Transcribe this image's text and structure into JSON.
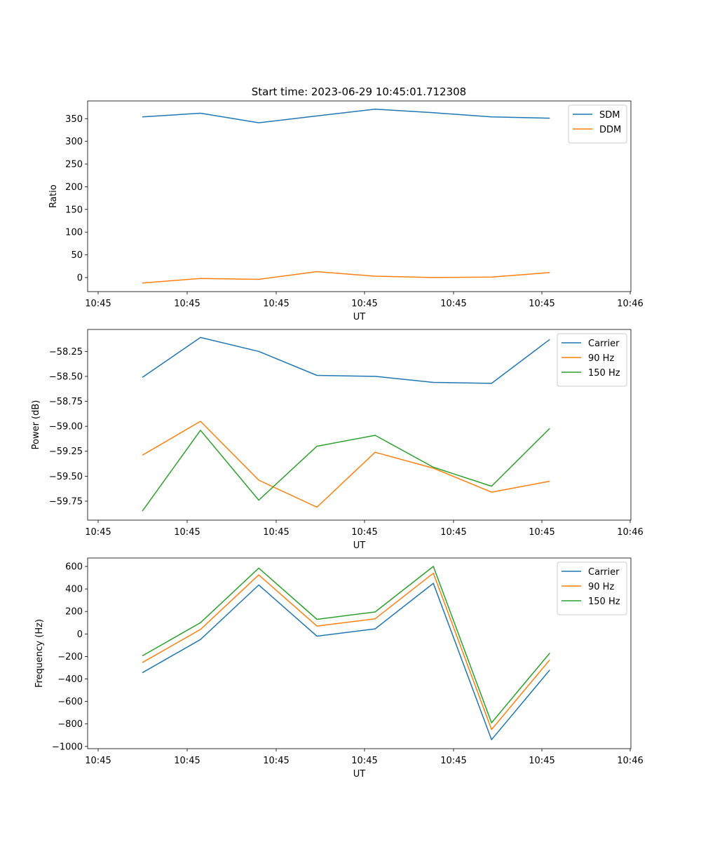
{
  "figure": {
    "title": "Start time: 2023-06-29 10:45:01.712308"
  },
  "chart_data": [
    {
      "type": "line",
      "xlabel": "UT",
      "ylabel": "Ratio",
      "x_tick_labels": [
        "10:45",
        "10:45",
        "10:45",
        "10:45",
        "10:45",
        "10:45",
        "10:46"
      ],
      "x": [
        0.25,
        0.58,
        0.91,
        1.24,
        1.57,
        1.9,
        2.23,
        2.56
      ],
      "xlim": [
        -0.06,
        3.02
      ],
      "yticks": [
        0,
        50,
        100,
        150,
        200,
        250,
        300,
        350
      ],
      "ylim": [
        -31,
        389
      ],
      "grid": false,
      "legend": "top-right",
      "series": [
        {
          "name": "SDM",
          "color": "#1f77b4",
          "values": [
            354,
            362,
            341,
            356,
            371,
            363,
            354,
            351
          ]
        },
        {
          "name": "DDM",
          "color": "#ff7f0e",
          "values": [
            -12,
            -2,
            -4,
            13,
            3,
            0,
            1,
            11
          ]
        }
      ]
    },
    {
      "type": "line",
      "xlabel": "UT",
      "ylabel": "Power (dB)",
      "x_tick_labels": [
        "10:45",
        "10:45",
        "10:45",
        "10:45",
        "10:45",
        "10:45",
        "10:46"
      ],
      "x": [
        0.25,
        0.58,
        0.91,
        1.24,
        1.57,
        1.9,
        2.23,
        2.56
      ],
      "xlim": [
        -0.06,
        3.02
      ],
      "yticks": [
        -59.75,
        -59.5,
        -59.25,
        -59.0,
        -58.75,
        -58.5,
        -58.25
      ],
      "ytick_labels": [
        "−59.75",
        "−59.50",
        "−59.25",
        "−59.00",
        "−58.75",
        "−58.50",
        "−58.25"
      ],
      "ylim": [
        -59.94,
        -58.03
      ],
      "grid": false,
      "legend": "top-right",
      "series": [
        {
          "name": "Carrier",
          "color": "#1f77b4",
          "values": [
            -58.51,
            -58.11,
            -58.25,
            -58.49,
            -58.5,
            -58.56,
            -58.57,
            -58.13
          ]
        },
        {
          "name": "90 Hz",
          "color": "#ff7f0e",
          "values": [
            -59.29,
            -58.95,
            -59.54,
            -59.81,
            -59.26,
            -59.42,
            -59.66,
            -59.55
          ]
        },
        {
          "name": "150 Hz",
          "color": "#2ca02c",
          "values": [
            -59.85,
            -59.04,
            -59.74,
            -59.2,
            -59.09,
            -59.41,
            -59.6,
            -59.02
          ]
        }
      ]
    },
    {
      "type": "line",
      "xlabel": "UT",
      "ylabel": "Frequency (Hz)",
      "x_tick_labels": [
        "10:45",
        "10:45",
        "10:45",
        "10:45",
        "10:45",
        "10:45",
        "10:46"
      ],
      "x": [
        0.25,
        0.58,
        0.91,
        1.24,
        1.57,
        1.9,
        2.23,
        2.56
      ],
      "xlim": [
        -0.06,
        3.02
      ],
      "yticks": [
        -1000,
        -800,
        -600,
        -400,
        -200,
        0,
        200,
        400,
        600
      ],
      "ytick_labels": [
        "−1000",
        "−800",
        "−600",
        "−400",
        "−200",
        "0",
        "200",
        "400",
        "600"
      ],
      "ylim": [
        -1020,
        675
      ],
      "grid": false,
      "legend": "top-right",
      "series": [
        {
          "name": "Carrier",
          "color": "#1f77b4",
          "values": [
            -345,
            -50,
            435,
            -20,
            45,
            450,
            -940,
            -320
          ]
        },
        {
          "name": "90 Hz",
          "color": "#ff7f0e",
          "values": [
            -255,
            40,
            525,
            70,
            135,
            540,
            -850,
            -230
          ]
        },
        {
          "name": "150 Hz",
          "color": "#2ca02c",
          "values": [
            -195,
            100,
            585,
            130,
            195,
            600,
            -790,
            -170
          ]
        }
      ]
    }
  ]
}
